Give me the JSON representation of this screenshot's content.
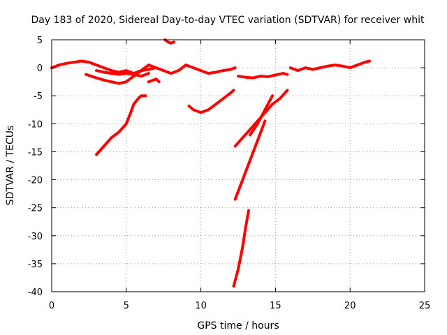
{
  "chart_data": {
    "type": "scatter",
    "title": "Day 183 of 2020, Sidereal Day-to-day VTEC variation (SDTVAR) for receiver whit",
    "xlabel": "GPS time / hours",
    "ylabel": "SDTVAR / TECUs",
    "xlim": [
      0,
      25
    ],
    "ylim": [
      -40,
      5
    ],
    "xticks": [
      0,
      5,
      10,
      15,
      20,
      25
    ],
    "yticks": [
      5,
      0,
      -5,
      -10,
      -15,
      -20,
      -25,
      -30,
      -35,
      -40
    ],
    "grid": true,
    "marker_color": "#ff0000",
    "series": [
      {
        "name": "s1",
        "x": [
          0.0,
          0.5,
          1.0,
          1.5,
          2.0,
          2.5,
          3.0,
          3.5,
          4.0,
          4.5,
          5.0,
          5.5,
          6.0
        ],
        "y": [
          0.0,
          0.5,
          0.8,
          1.0,
          1.2,
          1.0,
          0.5,
          0.0,
          -0.5,
          -0.8,
          -0.5,
          -1.0,
          -0.5
        ]
      },
      {
        "name": "s2",
        "x": [
          2.3,
          3.0,
          3.5,
          4.0,
          4.5
        ],
        "y": [
          -1.2,
          -1.8,
          -2.2,
          -2.5,
          -2.8
        ]
      },
      {
        "name": "s3",
        "x": [
          3.0,
          3.5,
          4.0,
          4.5,
          5.0,
          5.5,
          6.0,
          6.5
        ],
        "y": [
          -0.5,
          -0.8,
          -1.0,
          -1.2,
          -1.0,
          -1.2,
          -1.5,
          -1.0
        ]
      },
      {
        "name": "s4",
        "x": [
          4.5,
          5.0,
          5.5,
          6.0,
          6.5,
          7.0
        ],
        "y": [
          -2.8,
          -2.5,
          -1.5,
          -0.5,
          0.5,
          0.0
        ]
      },
      {
        "name": "s5",
        "x": [
          6.5,
          7.0,
          7.2
        ],
        "y": [
          -2.5,
          -2.0,
          -2.5
        ]
      },
      {
        "name": "s6",
        "x": [
          6.0,
          6.5,
          7.0,
          7.5,
          8.0,
          8.5,
          9.0,
          9.5,
          10.0,
          10.5,
          11.0,
          11.5,
          12.0,
          12.3
        ],
        "y": [
          -0.5,
          -0.3,
          0.0,
          -0.5,
          -1.0,
          -0.5,
          0.5,
          0.0,
          -0.5,
          -1.0,
          -0.8,
          -0.5,
          -0.3,
          0.0
        ]
      },
      {
        "name": "s7",
        "x": [
          7.6,
          7.8,
          8.0,
          8.2
        ],
        "y": [
          5.0,
          4.6,
          4.4,
          4.6
        ]
      },
      {
        "name": "s8",
        "x": [
          3.0,
          3.5,
          4.0,
          4.5,
          5.0,
          5.3,
          5.5,
          5.8,
          6.0,
          6.3
        ],
        "y": [
          -15.5,
          -14.0,
          -12.5,
          -11.5,
          -10.0,
          -8.0,
          -6.5,
          -5.5,
          -5.0,
          -5.0
        ]
      },
      {
        "name": "s9",
        "x": [
          9.2,
          9.5,
          10.0,
          10.5,
          11.0,
          11.5,
          12.0,
          12.2
        ],
        "y": [
          -6.8,
          -7.5,
          -8.0,
          -7.5,
          -6.5,
          -5.5,
          -4.5,
          -4.0
        ]
      },
      {
        "name": "s10",
        "x": [
          12.3,
          12.8,
          13.3,
          13.8,
          14.3,
          14.8,
          15.3,
          15.8
        ],
        "y": [
          -14.0,
          -12.5,
          -11.0,
          -9.5,
          -8.0,
          -6.5,
          -5.5,
          -4.0
        ]
      },
      {
        "name": "s11",
        "x": [
          12.3,
          12.8,
          13.3,
          13.8,
          14.3
        ],
        "y": [
          -23.5,
          -20.0,
          -16.5,
          -13.0,
          -9.5
        ]
      },
      {
        "name": "s12",
        "x": [
          12.2,
          12.5,
          12.8,
          13.0,
          13.2
        ],
        "y": [
          -39.0,
          -36.0,
          -32.0,
          -28.5,
          -25.5
        ]
      },
      {
        "name": "s13",
        "x": [
          13.3,
          13.8,
          14.3,
          14.8
        ],
        "y": [
          -12.0,
          -10.0,
          -7.5,
          -5.0
        ]
      },
      {
        "name": "s14",
        "x": [
          12.5,
          13.0,
          13.5,
          14.0,
          14.5,
          15.0,
          15.5,
          15.8
        ],
        "y": [
          -1.5,
          -1.7,
          -1.8,
          -1.5,
          -1.6,
          -1.3,
          -1.0,
          -1.2
        ]
      },
      {
        "name": "s15",
        "x": [
          16.0,
          16.5,
          17.0,
          17.5,
          18.0,
          18.5,
          19.0,
          19.5,
          20.0,
          20.5,
          21.0,
          21.3
        ],
        "y": [
          0.0,
          -0.5,
          0.0,
          -0.3,
          0.0,
          0.3,
          0.5,
          0.3,
          0.0,
          0.5,
          1.0,
          1.2
        ]
      }
    ]
  }
}
